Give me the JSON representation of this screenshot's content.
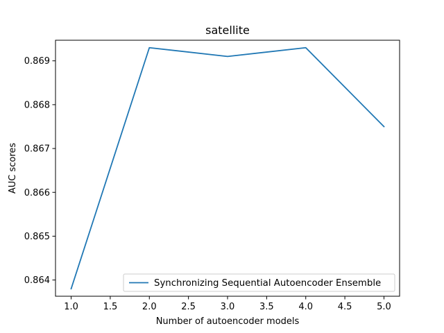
{
  "chart_data": {
    "type": "line",
    "title": "satellite",
    "xlabel": "Number of autoencoder models",
    "ylabel": "AUC scores",
    "xlim": [
      0.8,
      5.2
    ],
    "ylim": [
      0.86363,
      0.86947
    ],
    "xticks": [
      1.0,
      1.5,
      2.0,
      2.5,
      3.0,
      3.5,
      4.0,
      4.5,
      5.0
    ],
    "xtick_labels": [
      "1.0",
      "1.5",
      "2.0",
      "2.5",
      "3.0",
      "3.5",
      "4.0",
      "4.5",
      "5.0"
    ],
    "yticks": [
      0.864,
      0.865,
      0.866,
      0.867,
      0.868,
      0.869
    ],
    "ytick_labels": [
      "0.864",
      "0.865",
      "0.866",
      "0.867",
      "0.868",
      "0.869"
    ],
    "grid": false,
    "legend_position": "lower-right",
    "series": [
      {
        "name": "Synchronizing Sequential Autoencoder Ensemble",
        "color": "#1f77b4",
        "x": [
          1,
          2,
          3,
          4,
          5
        ],
        "y": [
          0.8638,
          0.8693,
          0.8691,
          0.8693,
          0.8675
        ]
      }
    ]
  }
}
